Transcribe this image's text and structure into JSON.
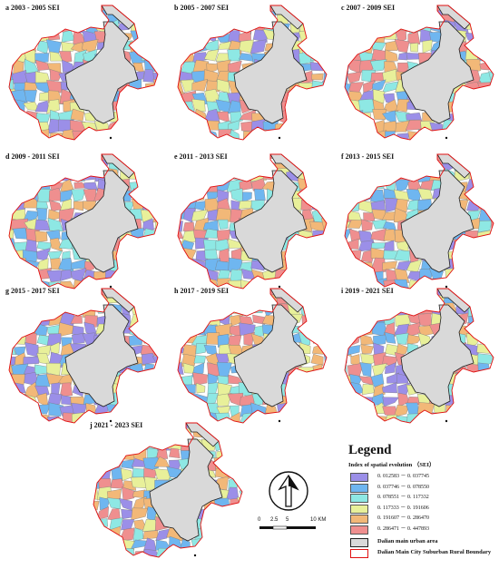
{
  "panels": [
    {
      "title": "a 2003 - 2005 SEI"
    },
    {
      "title": "b 2005 - 2007 SEI"
    },
    {
      "title": "c 2007 - 2009 SEI"
    },
    {
      "title": "d 2009 - 2011 SEI"
    },
    {
      "title": "e 2011 - 2013 SEI"
    },
    {
      "title": "f 2013 - 2015 SEI"
    },
    {
      "title": "g 2015 - 2017 SEI"
    },
    {
      "title": "h 2017 - 2019 SEI"
    },
    {
      "title": "i 2019 - 2021 SEI"
    },
    {
      "title": "j 2021 - 2023 SEI"
    }
  ],
  "legend": {
    "title": "Legend",
    "subtitle": "Index of spatial evolution （SEI）",
    "classes": [
      {
        "label": "0. 012583 － 0. 037745",
        "color": "#9b8fe8"
      },
      {
        "label": "0. 037746 － 0. 078550",
        "color": "#6fb6f0"
      },
      {
        "label": "0. 078551 － 0. 117332",
        "color": "#8ee8e4"
      },
      {
        "label": "0. 117333 － 0. 191606",
        "color": "#e8f09a"
      },
      {
        "label": "0. 191607 － 0. 286470",
        "color": "#f2b878"
      },
      {
        "label": "0. 286471 － 0. 447893",
        "color": "#ef8f8f"
      }
    ],
    "urban_label": "Dalian main urban area",
    "urban_color": "#d9d9d9",
    "boundary_label": "Dalian Main City Suburban Rural Boundary",
    "boundary_color": "#e01010"
  },
  "scale": {
    "ticks": [
      "0",
      "2.5",
      "5",
      "10 KM"
    ]
  },
  "north_arrow": "north-arrow-icon"
}
